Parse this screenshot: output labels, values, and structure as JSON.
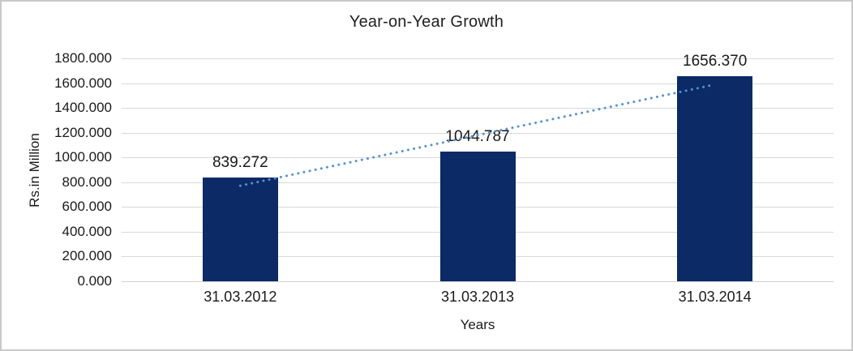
{
  "chart_data": {
    "type": "bar",
    "title": "Year-on-Year Growth",
    "xlabel": "Years",
    "ylabel": "Rs.in Million",
    "categories": [
      "31.03.2012",
      "31.03.2013",
      "31.03.2014"
    ],
    "values": [
      839.272,
      1044.787,
      1656.37
    ],
    "value_labels": [
      "839.272",
      "1044.787",
      "1656.370"
    ],
    "ylim": [
      0,
      1800
    ],
    "ytick_step": 200,
    "ytick_labels": [
      "0.000",
      "200.000",
      "400.000",
      "600.000",
      "800.000",
      "1000.000",
      "1200.000",
      "1400.000",
      "1600.000",
      "1800.000"
    ],
    "grid": true,
    "legend": "none",
    "trendline": {
      "type": "linear",
      "style": "dotted",
      "start_value": 771.59,
      "end_value": 1588.69
    },
    "colors": {
      "bar": "#0b2a66",
      "trendline": "#5591d2",
      "gridline": "#d9d9d9",
      "axis_line": "#d0d0d0",
      "text": "#1a1a1a",
      "border": "#c9c9c9"
    }
  }
}
